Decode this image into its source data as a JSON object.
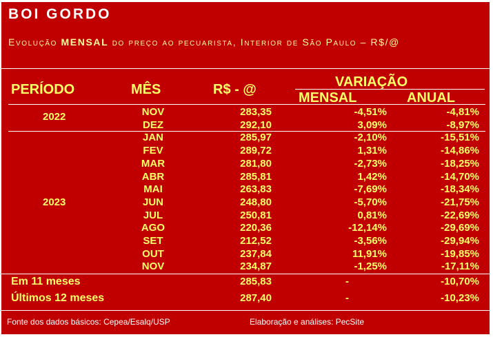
{
  "title": "BOI GORDO",
  "subtitle": {
    "part1": "Evolução ",
    "bold": "MENSAL",
    "part2": " do preço ao pecuarista, Interior de São Paulo – R$/@"
  },
  "headers": {
    "periodo": "PERÍODO",
    "mes": "MÊS",
    "valor": "R$ - @",
    "variacao": "VARIAÇÃO",
    "mensal": "MENSAL",
    "anual": "ANUAL"
  },
  "years": {
    "y2022": "2022",
    "y2023": "2023"
  },
  "rows": [
    {
      "mes": "NOV",
      "valor": "283,35",
      "mensal": "-4,51%",
      "anual": "-4,81%"
    },
    {
      "mes": "DEZ",
      "valor": "292,10",
      "mensal": "3,09%",
      "anual": "-8,97%"
    },
    {
      "mes": "JAN",
      "valor": "285,97",
      "mensal": "-2,10%",
      "anual": "-15,51%"
    },
    {
      "mes": "FEV",
      "valor": "289,72",
      "mensal": "1,31%",
      "anual": "-14,86%"
    },
    {
      "mes": "MAR",
      "valor": "281,80",
      "mensal": "-2,73%",
      "anual": "-18,25%"
    },
    {
      "mes": "ABR",
      "valor": "285,81",
      "mensal": "1,42%",
      "anual": "-14,70%"
    },
    {
      "mes": "MAI",
      "valor": "263,83",
      "mensal": "-7,69%",
      "anual": "-18,34%"
    },
    {
      "mes": "JUN",
      "valor": "248,80",
      "mensal": "-5,70%",
      "anual": "-21,75%"
    },
    {
      "mes": "JUL",
      "valor": "250,81",
      "mensal": "0,81%",
      "anual": "-22,69%"
    },
    {
      "mes": "AGO",
      "valor": "220,36",
      "mensal": "-12,14%",
      "anual": "-29,69%"
    },
    {
      "mes": "SET",
      "valor": "212,52",
      "mensal": "-3,56%",
      "anual": "-29,94%"
    },
    {
      "mes": "OUT",
      "valor": "237,84",
      "mensal": "11,91%",
      "anual": "-19,85%"
    },
    {
      "mes": "NOV",
      "valor": "234,87",
      "mensal": "-1,25%",
      "anual": "-17,11%"
    }
  ],
  "summary": [
    {
      "label": "Em 11 meses",
      "valor": "285,83",
      "mensal": "-",
      "anual": "-10,70%"
    },
    {
      "label": "Últimos 12 meses",
      "valor": "287,40",
      "mensal": "-",
      "anual": "-10,23%"
    }
  ],
  "footer": {
    "fonte": "Fonte dos dados básicos: Cepea/Esalq/USP",
    "elaboracao": "Elaboração e análises: PecSite"
  },
  "colors": {
    "background": "#c00000",
    "title": "#ffffff",
    "text": "#ffff66",
    "lines": "#ffffff"
  }
}
